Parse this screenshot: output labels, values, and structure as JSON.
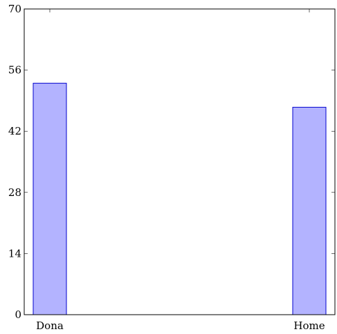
{
  "chart_data": {
    "type": "bar",
    "categories": [
      "Dona",
      "Home"
    ],
    "values": [
      53,
      47.5
    ],
    "ylim": [
      0,
      70
    ],
    "yticks": [
      0,
      14,
      28,
      42,
      56,
      70
    ],
    "title": "",
    "xlabel": "",
    "ylabel": "",
    "grid": false,
    "legend": "none",
    "colors": {
      "bar_fill": "#b3b3ff",
      "bar_stroke": "#0000cc",
      "axis": "#000000"
    }
  }
}
